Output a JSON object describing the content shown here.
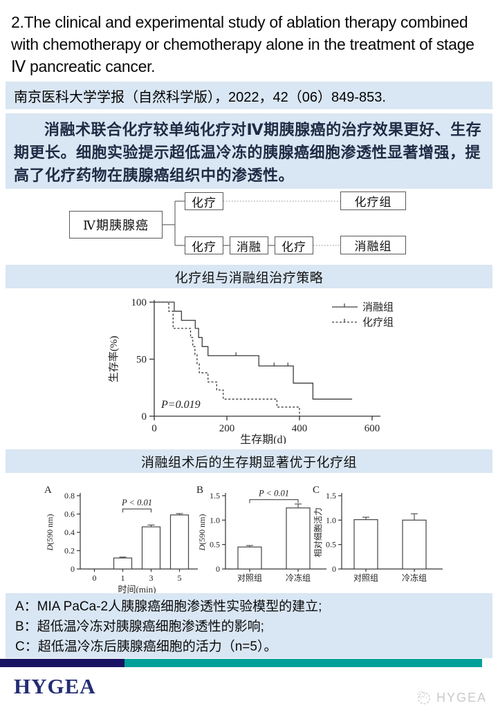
{
  "title": "2.The clinical and experimental study of ablation therapy combined with chemotherapy or chemotherapy alone in the treatment of stage Ⅳ pancreatic cancer.",
  "citation": "南京医科大学学报（自然科学版），2022，42（06）849-853.",
  "summary": "消融术联合化疗较单纯化疗对Ⅳ期胰腺癌的治疗效果更好、生存期更长。细胞实验提示超低温冷冻的胰腺癌细胞渗透性显著增强，提高了化疗药物在胰腺癌组织中的渗透性。",
  "flow": {
    "root": "Ⅳ期胰腺癌",
    "chemo": "化疗",
    "ablation": "消融",
    "chemo_group": "化疗组",
    "ablation_group": "消融组"
  },
  "banner1": "化疗组与消融组治疗策略",
  "banner2": "消融组术后的生存期显著优于化疗组",
  "notes": [
    "A：MIA PaCa-2人胰腺癌细胞渗透性实验模型的建立;",
    "B：超低温冷冻对胰腺癌细胞渗透性的影响;",
    "C：超低温冷冻后胰腺癌细胞的活力（n=5）。"
  ],
  "footer": {
    "logo": "HYGEA",
    "watermark": "HYGEA",
    "navy_color": "#191363",
    "teal_color": "#00a099",
    "logo_color": "#232d73",
    "watermark_color": "#c9c9c9"
  },
  "band_color": "#d9e6f3",
  "chart_data": [
    {
      "type": "line",
      "subtype": "kaplan_meier_step",
      "xlabel": "生存期(d)",
      "ylabel": "生存率(%)",
      "xlim": [
        0,
        600
      ],
      "ylim": [
        0,
        100
      ],
      "xticks": [
        0,
        200,
        400,
        600
      ],
      "yticks": [
        0,
        50,
        100
      ],
      "annotation": "P=0.019",
      "legend_position": "top-right",
      "grid": false,
      "series": [
        {
          "name": "消融组",
          "style": "solid",
          "points": [
            [
              0,
              100
            ],
            [
              55,
              100
            ],
            [
              55,
              92
            ],
            [
              75,
              92
            ],
            [
              75,
              84
            ],
            [
              113,
              84
            ],
            [
              113,
              77
            ],
            [
              122,
              77
            ],
            [
              122,
              69
            ],
            [
              132,
              69
            ],
            [
              132,
              61
            ],
            [
              148,
              61
            ],
            [
              148,
              53
            ],
            [
              288,
              53
            ],
            [
              288,
              44
            ],
            [
              383,
              44
            ],
            [
              383,
              29
            ],
            [
              437,
              29
            ],
            [
              437,
              15
            ],
            [
              545,
              15
            ]
          ],
          "censor_marks": [
            [
              225,
              53
            ],
            [
              330,
              44
            ],
            [
              368,
              44
            ]
          ]
        },
        {
          "name": "化疗组",
          "style": "dashed",
          "points": [
            [
              0,
              100
            ],
            [
              40,
              100
            ],
            [
              40,
              92
            ],
            [
              52,
              92
            ],
            [
              52,
              77
            ],
            [
              100,
              77
            ],
            [
              100,
              69
            ],
            [
              106,
              69
            ],
            [
              106,
              61
            ],
            [
              112,
              61
            ],
            [
              112,
              54
            ],
            [
              118,
              54
            ],
            [
              118,
              46
            ],
            [
              124,
              46
            ],
            [
              124,
              38
            ],
            [
              148,
              38
            ],
            [
              148,
              30
            ],
            [
              172,
              30
            ],
            [
              172,
              23
            ],
            [
              190,
              23
            ],
            [
              190,
              15
            ],
            [
              338,
              15
            ],
            [
              338,
              8
            ],
            [
              400,
              8
            ],
            [
              400,
              0
            ]
          ],
          "censor_marks": []
        }
      ]
    },
    {
      "panel": "A",
      "type": "bar",
      "categories": [
        "0",
        "1",
        "3",
        "5"
      ],
      "values": [
        0,
        0.12,
        0.46,
        0.59
      ],
      "errors": [
        0,
        0.01,
        0.02,
        0.015
      ],
      "xlabel": "时间(min)",
      "ylabel": "D(590 nm)",
      "ylim": [
        0,
        0.8
      ],
      "ytick_vals": [
        0,
        0.2,
        0.4,
        0.6,
        0.8
      ],
      "ytick_labels": [
        "0",
        "0.2",
        "0.4",
        "0.6",
        "0.8"
      ],
      "bracket": {
        "from": 1,
        "to": 2,
        "y": 0.655,
        "label": "P < 0.01"
      }
    },
    {
      "panel": "B",
      "type": "bar",
      "categories": [
        "对照组",
        "冷冻组"
      ],
      "values": [
        0.45,
        1.25
      ],
      "errors": [
        0.03,
        0.08
      ],
      "xlabel": "",
      "ylabel": "D(590 nm)",
      "ylim": [
        0,
        1.5
      ],
      "ytick_vals": [
        0,
        0.5,
        1.0,
        1.5
      ],
      "ytick_labels": [
        "0",
        "0.5",
        "1.0",
        "1.5"
      ],
      "bracket": {
        "from": 0,
        "to": 1,
        "y": 1.42,
        "label": "P < 0.01"
      }
    },
    {
      "panel": "C",
      "type": "bar",
      "categories": [
        "对照组",
        "冷冻组"
      ],
      "values": [
        1.01,
        1.0
      ],
      "errors": [
        0.05,
        0.13
      ],
      "xlabel": "",
      "ylabel": "相对细胞活力",
      "ylim": [
        0,
        1.5
      ],
      "ytick_vals": [
        0,
        0.5,
        1.0,
        1.5
      ],
      "ytick_labels": [
        "0",
        "0.5",
        "1.0",
        "1.5"
      ],
      "bracket": null
    }
  ]
}
